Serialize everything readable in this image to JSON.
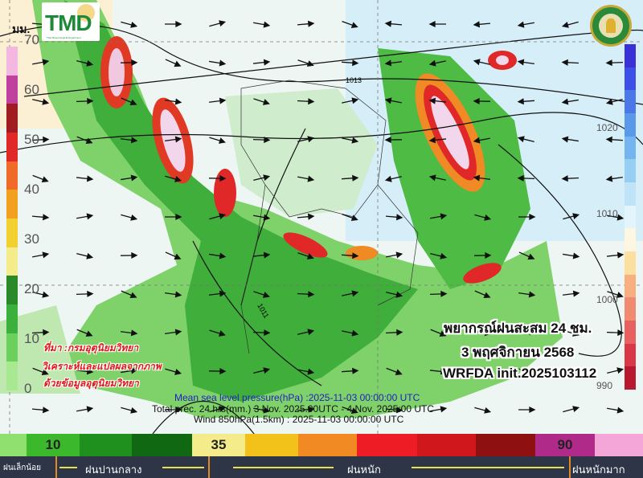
{
  "map": {
    "unit_label": "มม.",
    "logo_left": "TMD",
    "logo_left_subtitle": "Thai Meteorological Department",
    "logo_right": "กรมอุตุนิยมวิทยา METEOROLOGICAL DEPARTMENT",
    "precip_scale": {
      "ticks": [
        "70",
        "60",
        "50",
        "40",
        "30",
        "20",
        "10",
        "0"
      ],
      "colors": [
        "#f4b8e0",
        "#c040a0",
        "#a01c20",
        "#e02828",
        "#f06a28",
        "#f2a020",
        "#f2d030",
        "#f4ec8a",
        "#2a8a2a",
        "#3cb03c",
        "#6cd05c",
        "#a8e890"
      ]
    },
    "pressure_scale": {
      "ticks": [
        "1020",
        "1010",
        "1000",
        "990"
      ],
      "colors": [
        "#3a30d8",
        "#3c50e8",
        "#4a78e8",
        "#5a98ea",
        "#74b4f0",
        "#96cef4",
        "#bfe4f8",
        "#e4f4fb",
        "#fdf6e0",
        "#fde0a0",
        "#f8b080",
        "#f08a70",
        "#e86060",
        "#d83848",
        "#b81830"
      ]
    },
    "isobar_labels": [
      "1013",
      "1011"
    ],
    "forecast_title": "พยากรณ์ฝนสะสม 24 ชม.",
    "forecast_date": "3 พฤศจิกายน 2568",
    "model_init": "WRFDA init.2025103112",
    "source_lines": [
      "ที่มา :กรมอุตุนิยมวิทยา",
      "วิเคราะห์และแปลผลจากภาพ",
      "ด้วยข้อมูลอุตุนิยมวิทยา"
    ],
    "captions": {
      "mslp": "Mean sea level pressure(hPa) :2025-11-03 00:00:00 UTC",
      "precip": "Total prec. 24 hrs(mm.) 3 Nov. 2025.00UTC - 4 Nov.  2025:00  UTC",
      "wind": "Wind 850hPa(1.5km) : 2025-11-03 00:00:00 UTC"
    }
  },
  "legend": {
    "segments": [
      {
        "color": "#90e070",
        "label": ""
      },
      {
        "color": "#3cb82c",
        "label": "10"
      },
      {
        "color": "#1f8f1e",
        "label": ""
      },
      {
        "color": "#116812",
        "label": ""
      },
      {
        "color": "#f4ec8a",
        "label": "35"
      },
      {
        "color": "#f2c21a",
        "label": ""
      },
      {
        "color": "#f28a24",
        "label": ""
      },
      {
        "color": "#ee1c24",
        "label": ""
      },
      {
        "color": "#d0181c",
        "label": ""
      },
      {
        "color": "#8e1010",
        "label": ""
      },
      {
        "color": "#b02a8a",
        "label": "90"
      },
      {
        "color": "#f4a6d8",
        "label": ""
      }
    ],
    "categories": [
      "ฝนเล็กน้อย",
      "ฝนปานกลาง",
      "ฝนหนัก",
      "ฝนหนักมาก"
    ]
  }
}
